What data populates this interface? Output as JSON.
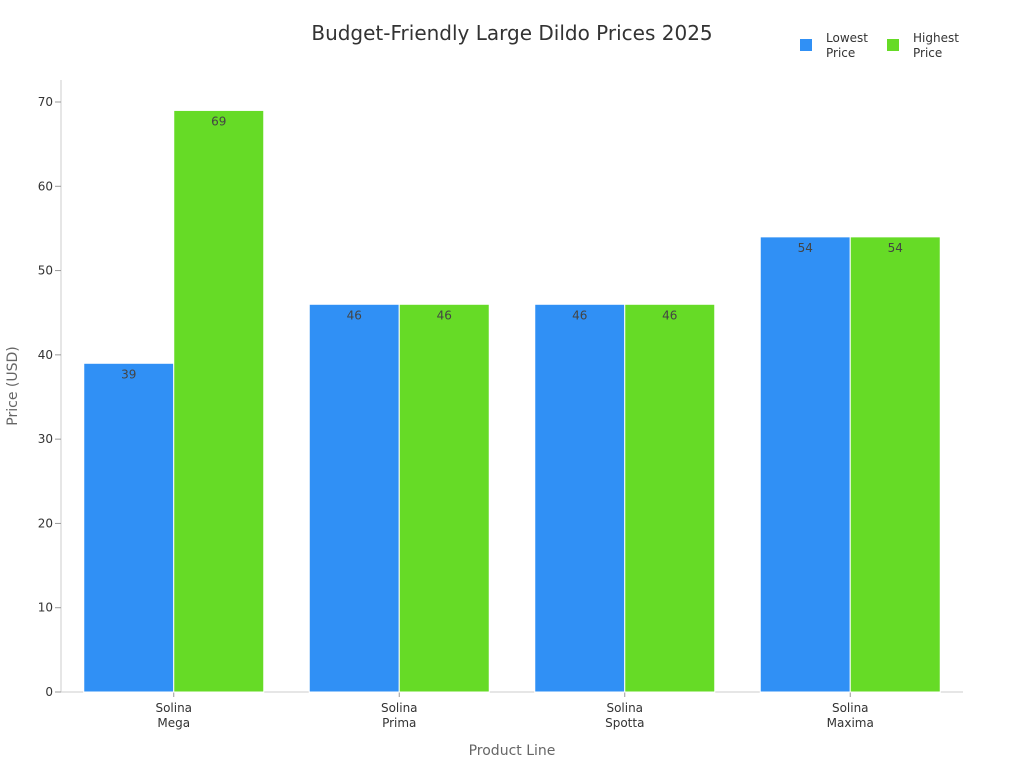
{
  "chart_data": {
    "type": "bar",
    "title": "Budget-Friendly Large Dildo Prices 2025",
    "xlabel": "Product Line",
    "ylabel": "Price (USD)",
    "categories": [
      [
        "Solina",
        "Mega"
      ],
      [
        "Solina",
        "Prima"
      ],
      [
        "Solina",
        "Spotta"
      ],
      [
        "Solina",
        "Maxima"
      ]
    ],
    "series": [
      {
        "name": [
          "Lowest",
          "Price"
        ],
        "color": "#3090F5",
        "values": [
          39,
          46,
          46,
          54
        ]
      },
      {
        "name": [
          "Highest",
          "Price"
        ],
        "color": "#66DB26",
        "values": [
          69,
          46,
          46,
          54
        ]
      }
    ],
    "ylim": [
      0,
      70
    ],
    "yticks": [
      0,
      10,
      20,
      30,
      40,
      50,
      60,
      70
    ],
    "grid": false,
    "legend_position": "top-right"
  }
}
